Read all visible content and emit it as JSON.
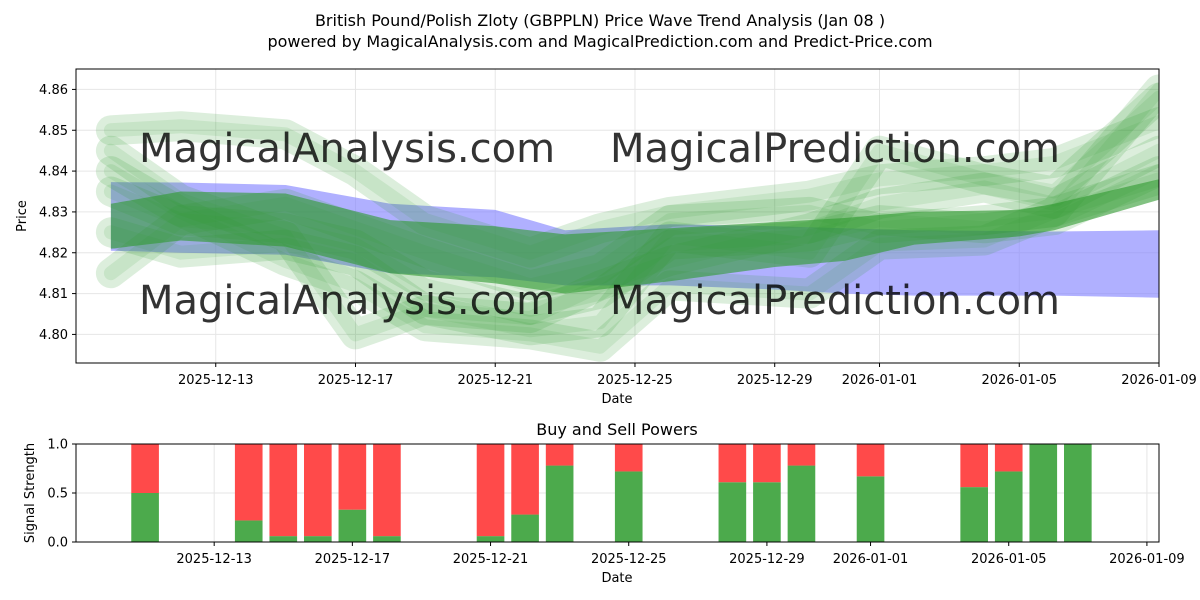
{
  "title_line1": "British Pound/Polish Zloty (GBPPLN) Price Wave Trend Analysis (Jan 08 )",
  "title_line2": "powered by MagicalAnalysis.com and MagicalPrediction.com and Predict-Price.com",
  "watermarks": {
    "top_left": "MagicalAnalysis.com",
    "top_right": "MagicalPrediction.com",
    "bottom_left": "MagicalAnalysis.com",
    "bottom_right": "MagicalPrediction.com"
  },
  "colors": {
    "blue_band": "#8080ff",
    "green_band": "#2e9a2e",
    "buy": "#4caa4c",
    "sell": "#ff4a4a",
    "grid": "#e6e6e6"
  },
  "chart_data": [
    {
      "type": "area",
      "title": "",
      "xlabel": "Date",
      "ylabel": "Price",
      "x_range": [
        "2025-12-09",
        "2026-01-09"
      ],
      "ylim": [
        4.793,
        4.865
      ],
      "yticks": [
        4.8,
        4.81,
        4.82,
        4.83,
        4.84,
        4.85,
        4.86
      ],
      "ytick_labels": [
        "4.80",
        "4.81",
        "4.82",
        "4.83",
        "4.84",
        "4.85",
        "4.86"
      ],
      "xticks": [
        "2025-12-13",
        "2025-12-17",
        "2025-12-21",
        "2025-12-25",
        "2025-12-29",
        "2026-01-01",
        "2026-01-05",
        "2026-01-09"
      ],
      "grid": true,
      "series": [
        {
          "name": "blue trend band",
          "x": [
            "2025-12-10",
            "2025-12-12",
            "2025-12-15",
            "2025-12-18",
            "2025-12-21",
            "2025-12-23",
            "2025-12-26",
            "2025-12-29",
            "2025-12-31",
            "2026-01-02",
            "2026-01-06",
            "2026-01-09"
          ],
          "upper": [
            4.8373,
            4.8372,
            4.8366,
            4.832,
            4.8305,
            4.8255,
            4.827,
            4.8265,
            4.826,
            4.8255,
            4.8252,
            4.8255
          ],
          "lower": [
            4.8205,
            4.82,
            4.8195,
            4.815,
            4.814,
            4.812,
            4.812,
            4.811,
            4.81,
            4.8095,
            4.8095,
            4.809
          ]
        },
        {
          "name": "green trend band",
          "x": [
            "2025-12-10",
            "2025-12-12",
            "2025-12-15",
            "2025-12-18",
            "2025-12-21",
            "2025-12-23",
            "2025-12-26",
            "2025-12-29",
            "2025-12-31",
            "2026-01-02",
            "2026-01-05",
            "2026-01-06",
            "2026-01-09"
          ],
          "upper": [
            4.832,
            4.835,
            4.8345,
            4.828,
            4.8265,
            4.8245,
            4.826,
            4.8275,
            4.8285,
            4.83,
            4.8305,
            4.832,
            4.838
          ],
          "lower": [
            4.821,
            4.823,
            4.8215,
            4.815,
            4.8125,
            4.81,
            4.813,
            4.8165,
            4.818,
            4.822,
            4.824,
            4.8255,
            4.833
          ]
        },
        {
          "name": "wave paths (light green)",
          "paths": [
            {
              "x": [
                "2025-12-10",
                "2025-12-12",
                "2025-12-15",
                "2025-12-17",
                "2025-12-19",
                "2025-12-22",
                "2025-12-24",
                "2025-12-26",
                "2025-12-30",
                "2026-01-01",
                "2026-01-04",
                "2026-01-06",
                "2026-01-09"
              ],
              "y": [
                4.85,
                4.851,
                4.849,
                4.84,
                4.828,
                4.82,
                4.826,
                4.83,
                4.834,
                4.838,
                4.84,
                4.842,
                4.852
              ]
            },
            {
              "x": [
                "2025-12-10",
                "2025-12-12",
                "2025-12-15",
                "2025-12-17",
                "2025-12-19",
                "2025-12-22",
                "2025-12-24",
                "2025-12-26",
                "2025-12-30",
                "2026-01-01",
                "2026-01-04",
                "2026-01-06",
                "2026-01-09"
              ],
              "y": [
                4.845,
                4.833,
                4.824,
                4.8,
                4.806,
                4.801,
                4.803,
                4.824,
                4.82,
                4.845,
                4.838,
                4.835,
                4.858
              ]
            },
            {
              "x": [
                "2025-12-10",
                "2025-12-12",
                "2025-12-15",
                "2025-12-17",
                "2025-12-19",
                "2025-12-22",
                "2025-12-24",
                "2025-12-26",
                "2025-12-30",
                "2026-01-01",
                "2026-01-04",
                "2026-01-06",
                "2026-01-09"
              ],
              "y": [
                4.84,
                4.83,
                4.818,
                4.812,
                4.802,
                4.8,
                4.797,
                4.812,
                4.81,
                4.822,
                4.823,
                4.83,
                4.86
              ]
            },
            {
              "x": [
                "2025-12-10",
                "2025-12-12",
                "2025-12-15",
                "2025-12-17",
                "2025-12-19",
                "2025-12-22",
                "2025-12-24",
                "2025-12-26",
                "2025-12-30",
                "2026-01-01",
                "2026-01-04",
                "2026-01-06",
                "2026-01-09"
              ],
              "y": [
                4.825,
                4.82,
                4.822,
                4.818,
                4.806,
                4.804,
                4.812,
                4.818,
                4.826,
                4.832,
                4.836,
                4.832,
                4.845
              ]
            },
            {
              "x": [
                "2025-12-10",
                "2025-12-12",
                "2025-12-15",
                "2025-12-17",
                "2025-12-19",
                "2025-12-22",
                "2025-12-24",
                "2025-12-26",
                "2025-12-30",
                "2026-01-01",
                "2026-01-04",
                "2026-01-06",
                "2026-01-09"
              ],
              "y": [
                4.835,
                4.828,
                4.826,
                4.822,
                4.812,
                4.806,
                4.81,
                4.822,
                4.824,
                4.828,
                4.826,
                4.828,
                4.84
              ]
            },
            {
              "x": [
                "2025-12-10",
                "2025-12-12",
                "2025-12-15",
                "2025-12-17",
                "2025-12-19",
                "2025-12-22",
                "2025-12-24",
                "2025-12-26",
                "2025-12-30",
                "2026-01-01",
                "2026-01-04",
                "2026-01-06",
                "2026-01-09"
              ],
              "y": [
                4.815,
                4.828,
                4.832,
                4.826,
                4.82,
                4.812,
                4.816,
                4.828,
                4.83,
                4.826,
                4.828,
                4.83,
                4.838
              ]
            }
          ]
        }
      ]
    },
    {
      "type": "bar",
      "title": "Buy and Sell Powers",
      "xlabel": "Date",
      "ylabel": "Signal Strength",
      "ylim": [
        0,
        1
      ],
      "yticks": [
        0.0,
        0.5,
        1.0
      ],
      "ytick_labels": [
        "0.0",
        "0.5",
        "1.0"
      ],
      "xticks": [
        "2025-12-13",
        "2025-12-17",
        "2025-12-21",
        "2025-12-25",
        "2025-12-29",
        "2026-01-01",
        "2026-01-05",
        "2026-01-09"
      ],
      "categories": [
        "2025-12-11",
        "2025-12-14",
        "2025-12-15",
        "2025-12-16",
        "2025-12-17",
        "2025-12-18",
        "2025-12-21",
        "2025-12-22",
        "2025-12-23",
        "2025-12-25",
        "2025-12-28",
        "2025-12-29",
        "2025-12-30",
        "2026-01-01",
        "2026-01-04",
        "2026-01-05",
        "2026-01-06",
        "2026-01-07"
      ],
      "series": [
        {
          "name": "Buy",
          "values": [
            0.5,
            0.22,
            0.06,
            0.06,
            0.33,
            0.06,
            0.06,
            0.28,
            0.78,
            0.72,
            0.61,
            0.61,
            0.78,
            0.67,
            0.56,
            0.72,
            1.0,
            1.0
          ]
        },
        {
          "name": "Sell",
          "values": [
            0.5,
            0.78,
            0.94,
            0.94,
            0.67,
            0.94,
            0.94,
            0.72,
            0.22,
            0.28,
            0.39,
            0.39,
            0.22,
            0.33,
            0.44,
            0.28,
            0.0,
            0.0
          ]
        }
      ]
    }
  ]
}
